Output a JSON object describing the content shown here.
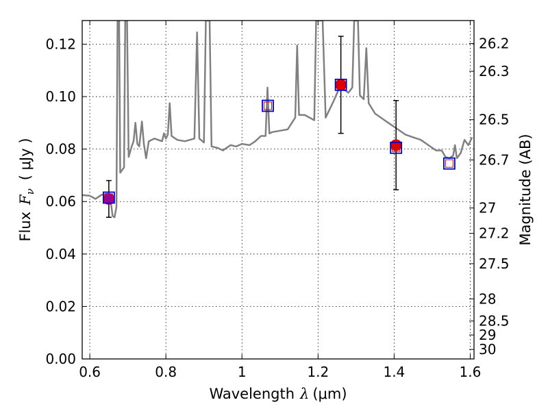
{
  "chart_data": {
    "type": "scatter",
    "title": "",
    "xlabel": {
      "prefix": "Wavelength",
      "symbol": "λ",
      "unit": "(μm)"
    },
    "ylabel": {
      "prefix": "Flux",
      "symbol": "F",
      "subscript": "ν",
      "unit": "( μJy )"
    },
    "ylabel_right": "Magnitude (AB)",
    "xlim": [
      0.58,
      1.61
    ],
    "ylim": [
      0.0,
      0.129
    ],
    "grid": true,
    "x_ticks": [
      {
        "value": 0.6,
        "label": "0.6"
      },
      {
        "value": 0.8,
        "label": "0.8"
      },
      {
        "value": 1.0,
        "label": "1"
      },
      {
        "value": 1.2,
        "label": "1.2"
      },
      {
        "value": 1.4,
        "label": "1.4"
      },
      {
        "value": 1.6,
        "label": "1.6"
      }
    ],
    "y_ticks": [
      {
        "value": 0.0,
        "label": "0.00"
      },
      {
        "value": 0.02,
        "label": "0.02"
      },
      {
        "value": 0.04,
        "label": "0.04"
      },
      {
        "value": 0.06,
        "label": "0.06"
      },
      {
        "value": 0.08,
        "label": "0.08"
      },
      {
        "value": 0.1,
        "label": "0.10"
      },
      {
        "value": 0.12,
        "label": "0.12"
      }
    ],
    "right_ticks": [
      {
        "label": "26.2",
        "mag": 26.2
      },
      {
        "label": "26.3",
        "mag": 26.3
      },
      {
        "label": "26.5",
        "mag": 26.5
      },
      {
        "label": "26.7",
        "mag": 26.7
      },
      {
        "label": "27",
        "mag": 27.0
      },
      {
        "label": "27.2",
        "mag": 27.2
      },
      {
        "label": "27.5",
        "mag": 27.5
      },
      {
        "label": "28",
        "mag": 28.0
      },
      {
        "label": "28.5",
        "mag": 28.5
      },
      {
        "label": "29",
        "mag": 29.0
      },
      {
        "label": "30",
        "mag": 30.0
      }
    ],
    "observed": [
      {
        "x": 0.65,
        "y": 0.061,
        "err": 0.007,
        "color": "#990099"
      },
      {
        "x": 1.26,
        "y": 0.1045,
        "err": 0.0185,
        "color": "#dd0000"
      },
      {
        "x": 1.405,
        "y": 0.0815,
        "err": 0.017,
        "color": "#dd0000"
      }
    ],
    "model": [
      {
        "x": 0.65,
        "y": 0.0615
      },
      {
        "x": 1.068,
        "y": 0.0965
      },
      {
        "x": 1.26,
        "y": 0.1045
      },
      {
        "x": 1.405,
        "y": 0.0805
      },
      {
        "x": 1.545,
        "y": 0.0745
      }
    ],
    "spectrum": [
      [
        0.58,
        0.0625
      ],
      [
        0.6,
        0.0622
      ],
      [
        0.615,
        0.061
      ],
      [
        0.63,
        0.0625
      ],
      [
        0.645,
        0.063
      ],
      [
        0.655,
        0.06
      ],
      [
        0.66,
        0.0545
      ],
      [
        0.665,
        0.054
      ],
      [
        0.67,
        0.058
      ],
      [
        0.673,
        0.129
      ],
      [
        0.677,
        0.129
      ],
      [
        0.68,
        0.071
      ],
      [
        0.685,
        0.072
      ],
      [
        0.69,
        0.073
      ],
      [
        0.693,
        0.129
      ],
      [
        0.698,
        0.129
      ],
      [
        0.702,
        0.077
      ],
      [
        0.71,
        0.081
      ],
      [
        0.715,
        0.083
      ],
      [
        0.72,
        0.09
      ],
      [
        0.725,
        0.082
      ],
      [
        0.73,
        0.081
      ],
      [
        0.737,
        0.0905
      ],
      [
        0.742,
        0.082
      ],
      [
        0.748,
        0.0765
      ],
      [
        0.755,
        0.083
      ],
      [
        0.77,
        0.084
      ],
      [
        0.79,
        0.083
      ],
      [
        0.795,
        0.086
      ],
      [
        0.8,
        0.084
      ],
      [
        0.805,
        0.0855
      ],
      [
        0.81,
        0.0975
      ],
      [
        0.815,
        0.085
      ],
      [
        0.83,
        0.0835
      ],
      [
        0.85,
        0.083
      ],
      [
        0.875,
        0.084
      ],
      [
        0.882,
        0.1245
      ],
      [
        0.888,
        0.084
      ],
      [
        0.9,
        0.0825
      ],
      [
        0.905,
        0.129
      ],
      [
        0.915,
        0.129
      ],
      [
        0.92,
        0.081
      ],
      [
        0.935,
        0.0805
      ],
      [
        0.95,
        0.0795
      ],
      [
        0.96,
        0.0805
      ],
      [
        0.97,
        0.0815
      ],
      [
        0.985,
        0.081
      ],
      [
        1.0,
        0.082
      ],
      [
        1.02,
        0.0815
      ],
      [
        1.035,
        0.083
      ],
      [
        1.05,
        0.085
      ],
      [
        1.062,
        0.085
      ],
      [
        1.067,
        0.1035
      ],
      [
        1.072,
        0.086
      ],
      [
        1.08,
        0.0865
      ],
      [
        1.1,
        0.087
      ],
      [
        1.12,
        0.0875
      ],
      [
        1.14,
        0.092
      ],
      [
        1.145,
        0.1195
      ],
      [
        1.15,
        0.093
      ],
      [
        1.165,
        0.093
      ],
      [
        1.19,
        0.091
      ],
      [
        1.195,
        0.129
      ],
      [
        1.212,
        0.129
      ],
      [
        1.22,
        0.092
      ],
      [
        1.24,
        0.098
      ],
      [
        1.255,
        0.103
      ],
      [
        1.262,
        0.1055
      ],
      [
        1.27,
        0.1025
      ],
      [
        1.28,
        0.1015
      ],
      [
        1.29,
        0.1035
      ],
      [
        1.295,
        0.129
      ],
      [
        1.305,
        0.129
      ],
      [
        1.31,
        0.1005
      ],
      [
        1.32,
        0.099
      ],
      [
        1.327,
        0.1185
      ],
      [
        1.333,
        0.0975
      ],
      [
        1.35,
        0.0935
      ],
      [
        1.37,
        0.0915
      ],
      [
        1.39,
        0.0895
      ],
      [
        1.41,
        0.0875
      ],
      [
        1.43,
        0.0855
      ],
      [
        1.45,
        0.0845
      ],
      [
        1.47,
        0.0835
      ],
      [
        1.49,
        0.0815
      ],
      [
        1.51,
        0.0795
      ],
      [
        1.525,
        0.0795
      ],
      [
        1.535,
        0.077
      ],
      [
        1.545,
        0.0765
      ],
      [
        1.555,
        0.0775
      ],
      [
        1.56,
        0.0815
      ],
      [
        1.565,
        0.0765
      ],
      [
        1.575,
        0.0785
      ],
      [
        1.585,
        0.0835
      ],
      [
        1.595,
        0.0815
      ],
      [
        1.605,
        0.0845
      ]
    ],
    "colors": {
      "spectrum": "#808080",
      "model_marker": "#0000cc",
      "grid": "#000000"
    }
  }
}
